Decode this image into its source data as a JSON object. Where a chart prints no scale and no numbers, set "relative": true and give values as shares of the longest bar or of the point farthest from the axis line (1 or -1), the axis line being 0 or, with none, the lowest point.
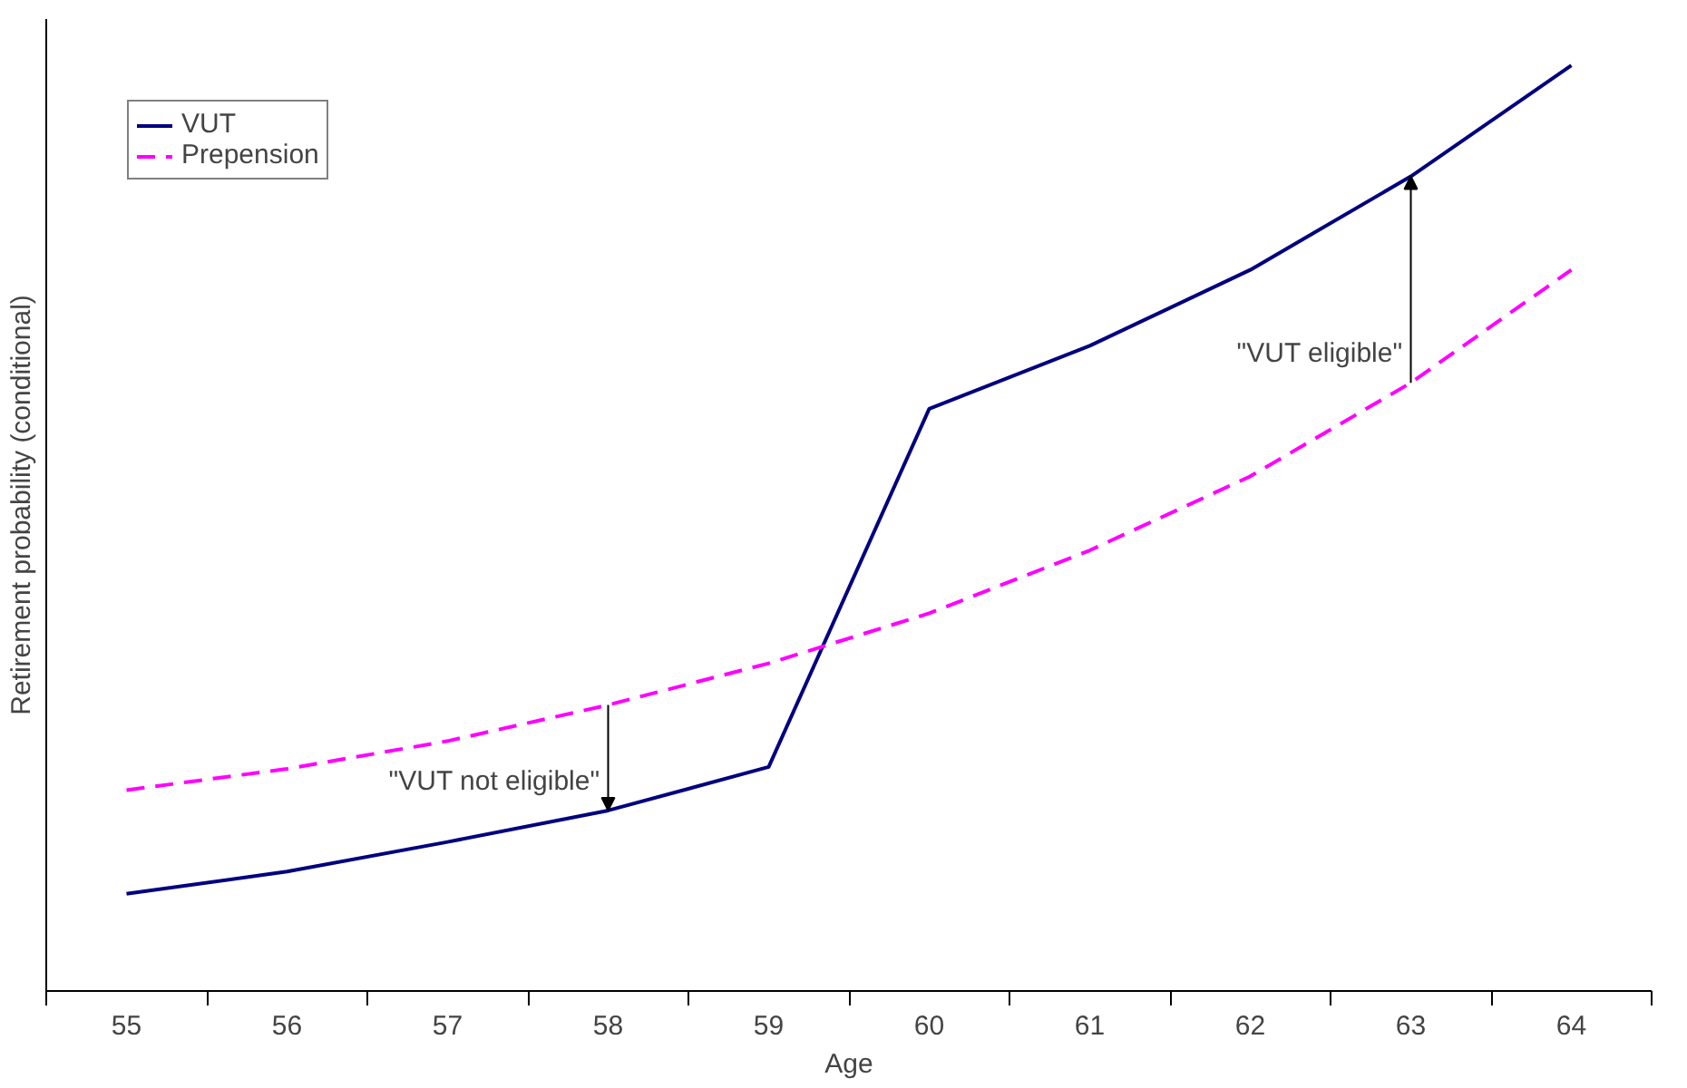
{
  "chart_data": {
    "type": "line",
    "relative": true,
    "xlabel": "Age",
    "ylabel": "Retirement probability (conditional)",
    "categories": [
      "55",
      "56",
      "57",
      "58",
      "59",
      "60",
      "61",
      "62",
      "63",
      "64"
    ],
    "series": [
      {
        "name": "VUT",
        "color": "#000080",
        "line_style": "solid",
        "values": [
          0.105,
          0.129,
          0.161,
          0.195,
          0.242,
          0.629,
          0.697,
          0.779,
          0.88,
          1.0
        ]
      },
      {
        "name": "Prepension",
        "color": "#ff00ff",
        "line_style": "dashed",
        "values": [
          0.217,
          0.24,
          0.27,
          0.309,
          0.354,
          0.408,
          0.476,
          0.556,
          0.657,
          0.779
        ]
      }
    ],
    "annotations": [
      {
        "text": "\"VUT not eligible\"",
        "x": "58",
        "y": 0.195
      },
      {
        "text": "\"VUT eligible\"",
        "x": "63",
        "y": 0.657
      }
    ],
    "legend": "top left",
    "grid": false,
    "marker": "none"
  }
}
